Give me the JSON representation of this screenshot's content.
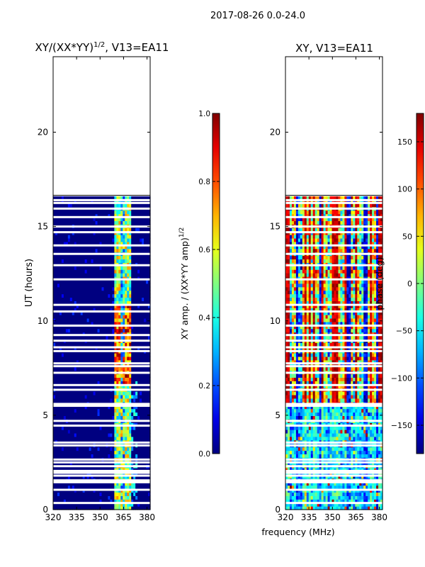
{
  "suptitle": "2017-08-26 0.0-24.0",
  "xlabel_shared": "frequency (MHz)",
  "chart_data": [
    {
      "type": "heatmap",
      "title": "XY/(XX*YY)",
      "title_exponent": "1/2",
      "title_suffix": ", V13=EA11",
      "xlabel": "",
      "ylabel": "UT (hours)",
      "xlim": [
        320,
        382
      ],
      "ylim": [
        0,
        24
      ],
      "xticks": [
        320,
        335,
        350,
        365,
        380
      ],
      "yticks": [
        0,
        5,
        10,
        15,
        20
      ],
      "data_extent_hours": [
        0,
        16.6
      ],
      "bright_band_mhz": [
        359.5,
        369.5
      ],
      "colorbar": {
        "label": "XY amp. / (XX*YY amp)",
        "label_exponent": "1/2",
        "range": [
          0.0,
          1.0
        ],
        "ticks": [
          "0.0",
          "0.2",
          "0.4",
          "0.6",
          "0.8",
          "1.0"
        ],
        "tick_values": [
          0.0,
          0.2,
          0.4,
          0.6,
          0.8,
          1.0
        ],
        "colormap": "jet"
      }
    },
    {
      "type": "heatmap",
      "title": "XY, V13=EA11",
      "xlabel": "frequency (MHz)",
      "ylabel": "",
      "xlim": [
        320,
        382
      ],
      "ylim": [
        0,
        24
      ],
      "xticks": [
        320,
        335,
        350,
        365,
        380
      ],
      "yticks": [
        0,
        5,
        10,
        15,
        20
      ],
      "data_extent_hours": [
        0,
        16.6
      ],
      "colorbar": {
        "label": "phase (deg)",
        "range": [
          -180,
          180
        ],
        "ticks": [
          "−150",
          "−100",
          "−50",
          "0",
          "50",
          "100",
          "150"
        ],
        "tick_values": [
          -150,
          -100,
          -50,
          0,
          50,
          100,
          150
        ],
        "colormap": "jet"
      }
    }
  ],
  "gap_hours": [
    0.35,
    1.05,
    1.45,
    1.55,
    1.8,
    1.95,
    2.05,
    2.3,
    2.5,
    2.65,
    3.4,
    3.55,
    4.45,
    4.7,
    5.5,
    5.6,
    6.35,
    6.6,
    7.25,
    7.6,
    7.75,
    8.4,
    8.6,
    8.95,
    9.25,
    9.75,
    10.5,
    10.85,
    12.2,
    12.95,
    13.55,
    14.0,
    14.7,
    15.0,
    15.5,
    15.95,
    16.25,
    16.4
  ]
}
